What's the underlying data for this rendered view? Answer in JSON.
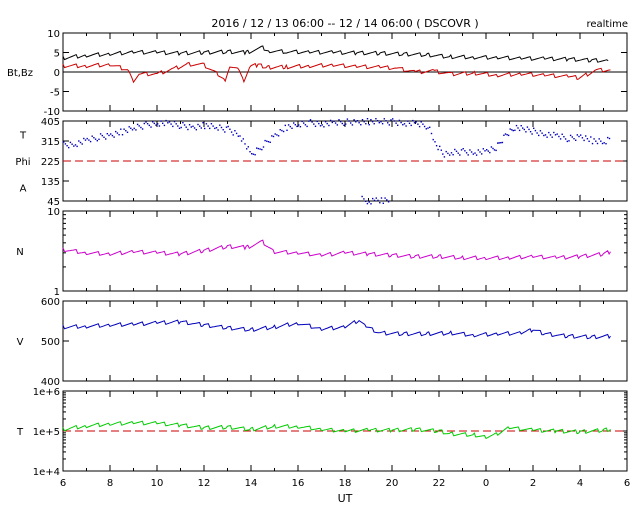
{
  "header": {
    "title": "2016 / 12 / 13   06:00 -- 12 / 14   06:00 ( DSCOVR )",
    "mode": "realtime"
  },
  "chart_data": {
    "type": "line",
    "x_axis": {
      "label": "UT",
      "tick_labels": [
        "6",
        "8",
        "10",
        "12",
        "14",
        "16",
        "18",
        "20",
        "22",
        "0",
        "2",
        "4",
        "6"
      ],
      "range_hours": [
        6,
        30
      ]
    },
    "panels": [
      {
        "id": "bt-bz",
        "ylabels": [
          "Bt,Bz"
        ],
        "scale": "linear",
        "ylim": [
          -10,
          10
        ],
        "ticks": [
          {
            "v": -10,
            "label": "-10"
          },
          {
            "v": -5,
            "label": "-5"
          },
          {
            "v": 0,
            "label": "0"
          },
          {
            "v": 5,
            "label": "5"
          },
          {
            "v": 10,
            "label": "10"
          }
        ],
        "reference": {
          "v": 0,
          "color": "#000000",
          "dashed": false
        },
        "series": [
          {
            "key": "Bt",
            "color": "#000000",
            "points": [
              [
                6.0,
                3.6
              ],
              [
                7.0,
                4.3
              ],
              [
                8.0,
                4.6
              ],
              [
                9.0,
                5.1
              ],
              [
                10.0,
                5.0
              ],
              [
                11.0,
                4.8
              ],
              [
                12.0,
                5.0
              ],
              [
                13.0,
                5.2
              ],
              [
                13.8,
                5.0
              ],
              [
                14.5,
                6.2
              ],
              [
                14.8,
                5.4
              ],
              [
                15.5,
                5.2
              ],
              [
                16.5,
                5.1
              ],
              [
                17.5,
                5.0
              ],
              [
                18.5,
                4.9
              ],
              [
                19.5,
                4.8
              ],
              [
                20.5,
                4.6
              ],
              [
                21.5,
                4.4
              ],
              [
                22.5,
                3.9
              ],
              [
                23.5,
                3.8
              ],
              [
                0.5,
                3.7
              ],
              [
                1.5,
                3.5
              ],
              [
                2.5,
                3.4
              ],
              [
                3.5,
                3.3
              ],
              [
                4.5,
                3.0
              ],
              [
                5.2,
                2.9
              ]
            ]
          },
          {
            "key": "Bz",
            "color": "#cc0000",
            "points": [
              [
                6.0,
                1.6
              ],
              [
                7.0,
                1.6
              ],
              [
                8.0,
                1.9
              ],
              [
                8.8,
                0.5
              ],
              [
                9.0,
                -2.5
              ],
              [
                9.3,
                -0.5
              ],
              [
                10.0,
                -0.5
              ],
              [
                10.7,
                0.8
              ],
              [
                11.3,
                2.0
              ],
              [
                12.0,
                1.8
              ],
              [
                12.6,
                -0.5
              ],
              [
                12.9,
                -2.0
              ],
              [
                13.1,
                1.5
              ],
              [
                13.5,
                0.5
              ],
              [
                13.7,
                -2.5
              ],
              [
                14.0,
                1.5
              ],
              [
                14.3,
                1.8
              ],
              [
                14.7,
                1.2
              ],
              [
                15.5,
                1.3
              ],
              [
                16.5,
                1.6
              ],
              [
                17.5,
                1.8
              ],
              [
                18.5,
                1.4
              ],
              [
                19.5,
                1.2
              ],
              [
                20.2,
                1.0
              ],
              [
                21.0,
                0.0
              ],
              [
                21.8,
                0.2
              ],
              [
                22.5,
                -0.5
              ],
              [
                23.5,
                -0.3
              ],
              [
                0.5,
                -0.8
              ],
              [
                1.5,
                -0.5
              ],
              [
                2.5,
                -0.8
              ],
              [
                3.5,
                -1.2
              ],
              [
                4.0,
                -1.5
              ],
              [
                4.7,
                0.5
              ],
              [
                5.3,
                0.5
              ]
            ]
          }
        ]
      },
      {
        "id": "phi",
        "ylabels": [
          "T",
          "Phi",
          "A"
        ],
        "scale": "linear",
        "ylim": [
          45,
          405
        ],
        "ticks": [
          {
            "v": 45,
            "label": "45"
          },
          {
            "v": 135,
            "label": "135"
          },
          {
            "v": 225,
            "label": "225"
          },
          {
            "v": 315,
            "label": "315"
          },
          {
            "v": 405,
            "label": "405"
          }
        ],
        "reference": {
          "v": 225,
          "color": "#cc0000",
          "dashed": true
        },
        "series": [
          {
            "key": "Phi",
            "color": "#0000bb",
            "dots": true,
            "points": [
              [
                6.0,
                300
              ],
              [
                6.5,
                305
              ],
              [
                7.0,
                320
              ],
              [
                7.5,
                335
              ],
              [
                8.0,
                345
              ],
              [
                8.5,
                360
              ],
              [
                9.0,
                375
              ],
              [
                9.5,
                390
              ],
              [
                10.0,
                400
              ],
              [
                10.5,
                395
              ],
              [
                11.0,
                388
              ],
              [
                11.5,
                380
              ],
              [
                12.0,
                388
              ],
              [
                12.5,
                378
              ],
              [
                13.0,
                370
              ],
              [
                13.5,
                345
              ],
              [
                14.0,
                252
              ],
              [
                14.5,
                300
              ],
              [
                15.0,
                345
              ],
              [
                15.5,
                380
              ],
              [
                16.0,
                390
              ],
              [
                16.5,
                400
              ],
              [
                17.0,
                395
              ],
              [
                17.5,
                398
              ],
              [
                18.0,
                403
              ],
              [
                18.5,
                405
              ],
              [
                19.0,
                405
              ],
              [
                19.5,
                405
              ],
              [
                20.0,
                404
              ],
              [
                20.5,
                400
              ],
              [
                21.0,
                395
              ],
              [
                21.5,
                385
              ],
              [
                21.8,
                310
              ],
              [
                22.2,
                260
              ],
              [
                22.5,
                265
              ],
              [
                23.0,
                270
              ],
              [
                23.5,
                268
              ],
              [
                0.0,
                270
              ],
              [
                0.4,
                285
              ],
              [
                0.8,
                345
              ],
              [
                1.2,
                380
              ],
              [
                1.6,
                370
              ],
              [
                2.0,
                362
              ],
              [
                2.5,
                350
              ],
              [
                3.0,
                340
              ],
              [
                3.5,
                328
              ],
              [
                4.0,
                340
              ],
              [
                4.5,
                320
              ],
              [
                5.0,
                310
              ],
              [
                5.3,
                330
              ]
            ]
          },
          {
            "key": "Phi-gap",
            "color": "#0000bb",
            "dots": true,
            "points": [
              [
                18.7,
                55
              ],
              [
                19.0,
                48
              ],
              [
                19.3,
                52
              ],
              [
                19.6,
                47
              ],
              [
                19.9,
                50
              ]
            ]
          }
        ]
      },
      {
        "id": "density",
        "ylabels": [
          "N"
        ],
        "scale": "log",
        "ylim": [
          1,
          10
        ],
        "ticks": [
          {
            "v": 1,
            "label": "1"
          },
          {
            "v": 10,
            "label": "10"
          }
        ],
        "reference": null,
        "series": [
          {
            "key": "N",
            "color": "#cc00cc",
            "points": [
              [
                6.0,
                3.3
              ],
              [
                7.0,
                3.0
              ],
              [
                8.0,
                2.9
              ],
              [
                9.0,
                3.1
              ],
              [
                10.0,
                3.0
              ],
              [
                11.0,
                2.9
              ],
              [
                12.0,
                3.2
              ],
              [
                13.0,
                3.6
              ],
              [
                13.8,
                3.5
              ],
              [
                14.5,
                4.1
              ],
              [
                15.0,
                3.1
              ],
              [
                16.0,
                3.0
              ],
              [
                17.0,
                2.8
              ],
              [
                18.0,
                3.0
              ],
              [
                19.0,
                2.9
              ],
              [
                20.0,
                2.8
              ],
              [
                21.0,
                2.7
              ],
              [
                22.0,
                2.7
              ],
              [
                23.0,
                2.6
              ],
              [
                0.0,
                2.6
              ],
              [
                1.0,
                2.6
              ],
              [
                2.0,
                2.7
              ],
              [
                3.0,
                2.6
              ],
              [
                4.0,
                2.7
              ],
              [
                5.0,
                2.9
              ],
              [
                5.3,
                3.1
              ]
            ]
          }
        ]
      },
      {
        "id": "speed",
        "ylabels": [
          "V"
        ],
        "scale": "linear",
        "ylim": [
          400,
          600
        ],
        "ticks": [
          {
            "v": 400,
            "label": "400"
          },
          {
            "v": 500,
            "label": "500"
          },
          {
            "v": 600,
            "label": "600"
          }
        ],
        "reference": null,
        "series": [
          {
            "key": "V",
            "color": "#0000bb",
            "points": [
              [
                6.0,
                535
              ],
              [
                7.0,
                537
              ],
              [
                8.0,
                540
              ],
              [
                9.0,
                542
              ],
              [
                10.0,
                545
              ],
              [
                11.0,
                548
              ],
              [
                12.0,
                540
              ],
              [
                13.0,
                533
              ],
              [
                14.0,
                528
              ],
              [
                15.0,
                535
              ],
              [
                16.0,
                545
              ],
              [
                17.0,
                530
              ],
              [
                18.0,
                535
              ],
              [
                18.6,
                552
              ],
              [
                18.9,
                535
              ],
              [
                19.5,
                520
              ],
              [
                20.5,
                518
              ],
              [
                21.5,
                518
              ],
              [
                22.5,
                520
              ],
              [
                23.5,
                515
              ],
              [
                0.5,
                518
              ],
              [
                1.5,
                520
              ],
              [
                2.0,
                528
              ],
              [
                2.5,
                518
              ],
              [
                3.5,
                512
              ],
              [
                4.5,
                510
              ],
              [
                5.3,
                512
              ]
            ]
          }
        ]
      },
      {
        "id": "temperature",
        "ylabels": [
          "T"
        ],
        "scale": "log",
        "ylim": [
          10000,
          1000000
        ],
        "ticks": [
          {
            "v": 10000,
            "label": "1e+4"
          },
          {
            "v": 100000,
            "label": "1e+5"
          },
          {
            "v": 1000000,
            "label": "1e+6"
          }
        ],
        "reference": {
          "v": 100000,
          "color": "#cc0000",
          "dashed": true
        },
        "series": [
          {
            "key": "T",
            "color": "#00cc00",
            "points": [
              [
                6.0,
                110000
              ],
              [
                7.0,
                135000
              ],
              [
                8.0,
                150000
              ],
              [
                9.0,
                160000
              ],
              [
                10.0,
                155000
              ],
              [
                11.0,
                140000
              ],
              [
                12.0,
                120000
              ],
              [
                13.0,
                125000
              ],
              [
                14.0,
                110000
              ],
              [
                15.0,
                130000
              ],
              [
                16.0,
                130000
              ],
              [
                17.0,
                110000
              ],
              [
                18.0,
                100000
              ],
              [
                19.0,
                105000
              ],
              [
                20.0,
                105000
              ],
              [
                21.0,
                110000
              ],
              [
                22.0,
                100000
              ],
              [
                22.5,
                85000
              ],
              [
                23.5,
                80000
              ],
              [
                0.0,
                72000
              ],
              [
                0.5,
                85000
              ],
              [
                1.0,
                120000
              ],
              [
                2.0,
                105000
              ],
              [
                3.0,
                100000
              ],
              [
                4.0,
                95000
              ],
              [
                5.0,
                105000
              ],
              [
                5.3,
                110000
              ]
            ]
          }
        ]
      }
    ]
  }
}
